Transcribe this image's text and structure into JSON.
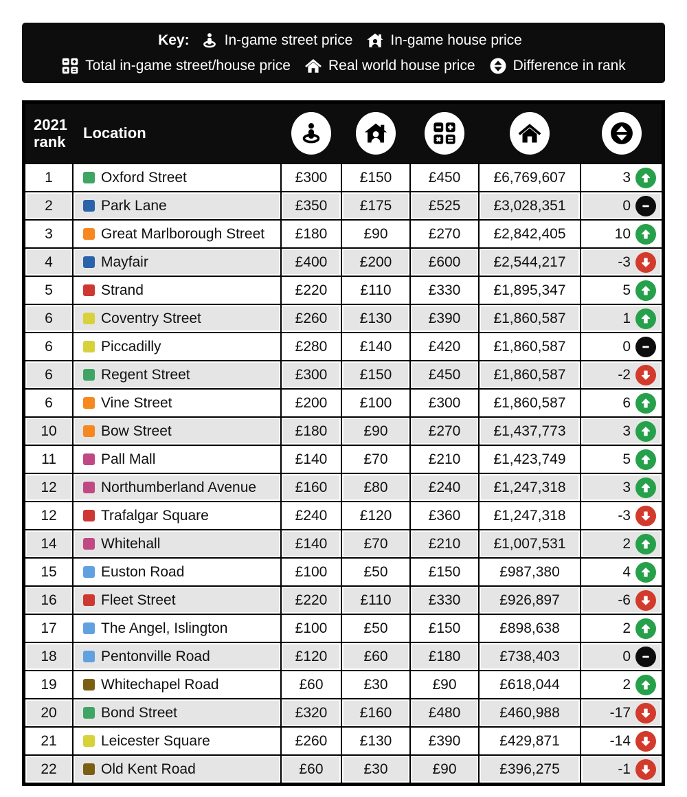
{
  "key": {
    "label": "Key:",
    "items": [
      {
        "icon": "street-price-icon",
        "label": "In-game street price"
      },
      {
        "icon": "house-price-icon",
        "label": "In-game house price"
      },
      {
        "icon": "total-price-icon",
        "label": "Total in-game street/house price"
      },
      {
        "icon": "real-world-icon",
        "label": "Real world house price"
      },
      {
        "icon": "rank-diff-icon",
        "label": "Difference in rank"
      }
    ]
  },
  "table": {
    "header": {
      "rank_top": "2021",
      "rank_bottom": "rank",
      "location": "Location",
      "icon_columns": [
        "street-price-icon",
        "house-price-icon",
        "total-price-icon",
        "real-world-icon",
        "rank-diff-icon"
      ]
    }
  },
  "colors": {
    "header_bg": "#0d0d0d",
    "row_alt": "#e5e5e5",
    "badge_up": "#27a04b",
    "badge_down": "#d23a2c",
    "badge_zero": "#0d0d0d"
  },
  "chart_data": {
    "type": "table",
    "columns": [
      "2021 rank",
      "Location",
      "In-game street price",
      "In-game house price",
      "Total in-game street/house price",
      "Real world house price",
      "Difference in rank"
    ],
    "color_sets": {
      "green": "#3fa564",
      "darkblue": "#2a63a9",
      "orange": "#f6881f",
      "red": "#cd3832",
      "yellow": "#d8d23a",
      "pink": "#c14983",
      "lightblue": "#62a1e0",
      "brown": "#7c5e13"
    },
    "rows": [
      {
        "rank": "1",
        "set": "green",
        "location": "Oxford Street",
        "street": "£300",
        "house": "£150",
        "total": "£450",
        "real": "£6,769,607",
        "diff": "3",
        "dir": "up"
      },
      {
        "rank": "2",
        "set": "darkblue",
        "location": "Park Lane",
        "street": "£350",
        "house": "£175",
        "total": "£525",
        "real": "£3,028,351",
        "diff": "0",
        "dir": "zero"
      },
      {
        "rank": "3",
        "set": "orange",
        "location": "Great Marlborough Street",
        "street": "£180",
        "house": "£90",
        "total": "£270",
        "real": "£2,842,405",
        "diff": "10",
        "dir": "up"
      },
      {
        "rank": "4",
        "set": "darkblue",
        "location": "Mayfair",
        "street": "£400",
        "house": "£200",
        "total": "£600",
        "real": "£2,544,217",
        "diff": "-3",
        "dir": "down"
      },
      {
        "rank": "5",
        "set": "red",
        "location": "Strand",
        "street": "£220",
        "house": "£110",
        "total": "£330",
        "real": "£1,895,347",
        "diff": "5",
        "dir": "up"
      },
      {
        "rank": "6",
        "set": "yellow",
        "location": "Coventry Street",
        "street": "£260",
        "house": "£130",
        "total": "£390",
        "real": "£1,860,587",
        "diff": "1",
        "dir": "up"
      },
      {
        "rank": "6",
        "set": "yellow",
        "location": "Piccadilly",
        "street": "£280",
        "house": "£140",
        "total": "£420",
        "real": "£1,860,587",
        "diff": "0",
        "dir": "zero"
      },
      {
        "rank": "6",
        "set": "green",
        "location": "Regent Street",
        "street": "£300",
        "house": "£150",
        "total": "£450",
        "real": "£1,860,587",
        "diff": "-2",
        "dir": "down"
      },
      {
        "rank": "6",
        "set": "orange",
        "location": "Vine Street",
        "street": "£200",
        "house": "£100",
        "total": "£300",
        "real": "£1,860,587",
        "diff": "6",
        "dir": "up"
      },
      {
        "rank": "10",
        "set": "orange",
        "location": "Bow Street",
        "street": "£180",
        "house": "£90",
        "total": "£270",
        "real": "£1,437,773",
        "diff": "3",
        "dir": "up"
      },
      {
        "rank": "11",
        "set": "pink",
        "location": "Pall Mall",
        "street": "£140",
        "house": "£70",
        "total": "£210",
        "real": "£1,423,749",
        "diff": "5",
        "dir": "up"
      },
      {
        "rank": "12",
        "set": "pink",
        "location": "Northumberland Avenue",
        "street": "£160",
        "house": "£80",
        "total": "£240",
        "real": "£1,247,318",
        "diff": "3",
        "dir": "up"
      },
      {
        "rank": "12",
        "set": "red",
        "location": "Trafalgar Square",
        "street": "£240",
        "house": "£120",
        "total": "£360",
        "real": "£1,247,318",
        "diff": "-3",
        "dir": "down"
      },
      {
        "rank": "14",
        "set": "pink",
        "location": "Whitehall",
        "street": "£140",
        "house": "£70",
        "total": "£210",
        "real": "£1,007,531",
        "diff": "2",
        "dir": "up"
      },
      {
        "rank": "15",
        "set": "lightblue",
        "location": "Euston Road",
        "street": "£100",
        "house": "£50",
        "total": "£150",
        "real": "£987,380",
        "diff": "4",
        "dir": "up"
      },
      {
        "rank": "16",
        "set": "red",
        "location": "Fleet Street",
        "street": "£220",
        "house": "£110",
        "total": "£330",
        "real": "£926,897",
        "diff": "-6",
        "dir": "down"
      },
      {
        "rank": "17",
        "set": "lightblue",
        "location": "The Angel, Islington",
        "street": "£100",
        "house": "£50",
        "total": "£150",
        "real": "£898,638",
        "diff": "2",
        "dir": "up"
      },
      {
        "rank": "18",
        "set": "lightblue",
        "location": "Pentonville Road",
        "street": "£120",
        "house": "£60",
        "total": "£180",
        "real": "£738,403",
        "diff": "0",
        "dir": "zero"
      },
      {
        "rank": "19",
        "set": "brown",
        "location": "Whitechapel Road",
        "street": "£60",
        "house": "£30",
        "total": "£90",
        "real": "£618,044",
        "diff": "2",
        "dir": "up"
      },
      {
        "rank": "20",
        "set": "green",
        "location": "Bond Street",
        "street": "£320",
        "house": "£160",
        "total": "£480",
        "real": "£460,988",
        "diff": "-17",
        "dir": "down"
      },
      {
        "rank": "21",
        "set": "yellow",
        "location": "Leicester Square",
        "street": "£260",
        "house": "£130",
        "total": "£390",
        "real": "£429,871",
        "diff": "-14",
        "dir": "down"
      },
      {
        "rank": "22",
        "set": "brown",
        "location": "Old Kent Road",
        "street": "£60",
        "house": "£30",
        "total": "£90",
        "real": "£396,275",
        "diff": "-1",
        "dir": "down"
      }
    ]
  }
}
